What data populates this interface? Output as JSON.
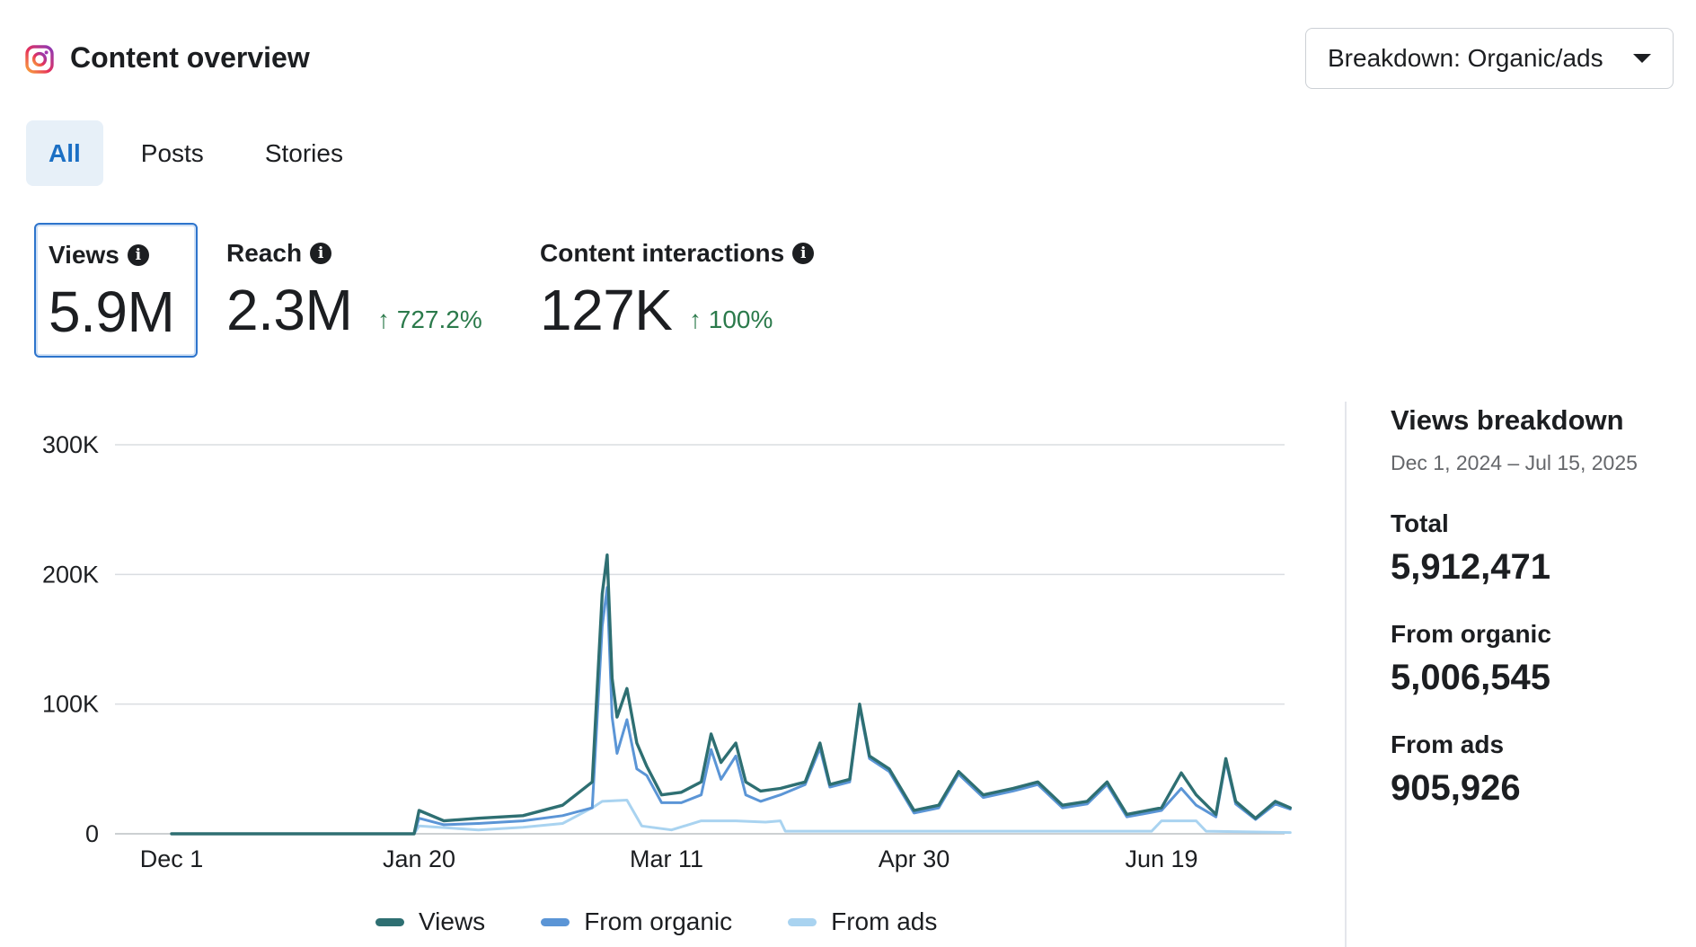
{
  "header": {
    "title": "Content overview",
    "breakdown_label": "Breakdown: Organic/ads"
  },
  "tabs": [
    {
      "label": "All",
      "active": true
    },
    {
      "label": "Posts",
      "active": false
    },
    {
      "label": "Stories",
      "active": false
    }
  ],
  "metrics": [
    {
      "label": "Views",
      "value": "5.9M",
      "change": "",
      "selected": true
    },
    {
      "label": "Reach",
      "value": "2.3M",
      "change": "↑ 727.2%",
      "selected": false
    },
    {
      "label": "Content interactions",
      "value": "127K",
      "change": "↑ 100%",
      "selected": false
    }
  ],
  "colors": {
    "views": "#2e6f72",
    "organic": "#5b95d6",
    "ads": "#a9d3f0",
    "accent": "#1b6fc4",
    "positive": "#2b7a4b"
  },
  "breakdown_panel": {
    "title": "Views breakdown",
    "date_range": "Dec 1, 2024 – Jul 15, 2025",
    "items": [
      {
        "label": "Total",
        "value": "5,912,471"
      },
      {
        "label": "From organic",
        "value": "5,006,545"
      },
      {
        "label": "From ads",
        "value": "905,926"
      }
    ]
  },
  "chart_data": {
    "type": "line",
    "x_ticks": [
      "Dec 1",
      "Jan 20",
      "Mar 11",
      "Apr 30",
      "Jun 19"
    ],
    "y_ticks": [
      "0",
      "100K",
      "200K",
      "300K"
    ],
    "ylim": [
      0,
      300000
    ],
    "xlim": [
      "Dec 1, 2024",
      "Jul 15, 2025"
    ],
    "grid": true,
    "legend_position": "bottom",
    "series": [
      {
        "name": "Views",
        "color": "#2e6f72",
        "points": [
          [
            "Dec 1",
            0
          ],
          [
            "Jan 19",
            0
          ],
          [
            "Jan 20",
            18000
          ],
          [
            "Jan 25",
            10000
          ],
          [
            "Feb 1",
            12000
          ],
          [
            "Feb 10",
            14000
          ],
          [
            "Feb 18",
            22000
          ],
          [
            "Feb 24",
            40000
          ],
          [
            "Feb 26",
            185000
          ],
          [
            "Feb 27",
            215000
          ],
          [
            "Feb 28",
            120000
          ],
          [
            "Mar 1",
            90000
          ],
          [
            "Mar 3",
            112000
          ],
          [
            "Mar 5",
            70000
          ],
          [
            "Mar 7",
            52000
          ],
          [
            "Mar 10",
            30000
          ],
          [
            "Mar 14",
            32000
          ],
          [
            "Mar 18",
            40000
          ],
          [
            "Mar 20",
            77000
          ],
          [
            "Mar 22",
            55000
          ],
          [
            "Mar 25",
            70000
          ],
          [
            "Mar 27",
            40000
          ],
          [
            "Mar 30",
            33000
          ],
          [
            "Apr 3",
            35000
          ],
          [
            "Apr 8",
            40000
          ],
          [
            "Apr 11",
            70000
          ],
          [
            "Apr 13",
            38000
          ],
          [
            "Apr 17",
            42000
          ],
          [
            "Apr 19",
            100000
          ],
          [
            "Apr 21",
            60000
          ],
          [
            "Apr 25",
            50000
          ],
          [
            "Apr 30",
            18000
          ],
          [
            "May 5",
            22000
          ],
          [
            "May 9",
            48000
          ],
          [
            "May 14",
            30000
          ],
          [
            "May 20",
            35000
          ],
          [
            "May 25",
            40000
          ],
          [
            "May 30",
            22000
          ],
          [
            "Jun 4",
            25000
          ],
          [
            "Jun 8",
            40000
          ],
          [
            "Jun 12",
            15000
          ],
          [
            "Jun 19",
            20000
          ],
          [
            "Jun 23",
            47000
          ],
          [
            "Jun 26",
            30000
          ],
          [
            "Jun 30",
            15000
          ],
          [
            "Jul 2",
            58000
          ],
          [
            "Jul 4",
            25000
          ],
          [
            "Jul 8",
            12000
          ],
          [
            "Jul 12",
            25000
          ],
          [
            "Jul 15",
            20000
          ]
        ]
      },
      {
        "name": "From organic",
        "color": "#5b95d6",
        "points": [
          [
            "Dec 1",
            0
          ],
          [
            "Jan 19",
            0
          ],
          [
            "Jan 20",
            12000
          ],
          [
            "Jan 25",
            7000
          ],
          [
            "Feb 1",
            8000
          ],
          [
            "Feb 10",
            10000
          ],
          [
            "Feb 18",
            14000
          ],
          [
            "Feb 24",
            20000
          ],
          [
            "Feb 26",
            160000
          ],
          [
            "Feb 27",
            190000
          ],
          [
            "Feb 28",
            90000
          ],
          [
            "Mar 1",
            62000
          ],
          [
            "Mar 3",
            88000
          ],
          [
            "Mar 5",
            50000
          ],
          [
            "Mar 7",
            45000
          ],
          [
            "Mar 10",
            24000
          ],
          [
            "Mar 14",
            24000
          ],
          [
            "Mar 18",
            30000
          ],
          [
            "Mar 20",
            65000
          ],
          [
            "Mar 22",
            42000
          ],
          [
            "Mar 25",
            60000
          ],
          [
            "Mar 27",
            30000
          ],
          [
            "Mar 30",
            25000
          ],
          [
            "Apr 3",
            30000
          ],
          [
            "Apr 8",
            38000
          ],
          [
            "Apr 11",
            66000
          ],
          [
            "Apr 13",
            36000
          ],
          [
            "Apr 17",
            40000
          ],
          [
            "Apr 19",
            98000
          ],
          [
            "Apr 21",
            58000
          ],
          [
            "Apr 25",
            48000
          ],
          [
            "Apr 30",
            16000
          ],
          [
            "May 5",
            20000
          ],
          [
            "May 9",
            46000
          ],
          [
            "May 14",
            28000
          ],
          [
            "May 20",
            33000
          ],
          [
            "May 25",
            38000
          ],
          [
            "May 30",
            20000
          ],
          [
            "Jun 4",
            23000
          ],
          [
            "Jun 8",
            38000
          ],
          [
            "Jun 12",
            13000
          ],
          [
            "Jun 19",
            18000
          ],
          [
            "Jun 23",
            35000
          ],
          [
            "Jun 26",
            22000
          ],
          [
            "Jun 30",
            13000
          ],
          [
            "Jul 2",
            56000
          ],
          [
            "Jul 4",
            23000
          ],
          [
            "Jul 8",
            11000
          ],
          [
            "Jul 12",
            23000
          ],
          [
            "Jul 15",
            19000
          ]
        ]
      },
      {
        "name": "From ads",
        "color": "#a9d3f0",
        "points": [
          [
            "Dec 1",
            0
          ],
          [
            "Jan 19",
            0
          ],
          [
            "Jan 20",
            6000
          ],
          [
            "Feb 1",
            3000
          ],
          [
            "Feb 10",
            5000
          ],
          [
            "Feb 18",
            8000
          ],
          [
            "Feb 24",
            20000
          ],
          [
            "Feb 26",
            25000
          ],
          [
            "Mar 3",
            26000
          ],
          [
            "Mar 6",
            6000
          ],
          [
            "Mar 12",
            3000
          ],
          [
            "Mar 18",
            10000
          ],
          [
            "Mar 25",
            10000
          ],
          [
            "Mar 31",
            9000
          ],
          [
            "Apr 3",
            10000
          ],
          [
            "Apr 4",
            2000
          ],
          [
            "Apr 30",
            2000
          ],
          [
            "Jun 17",
            2000
          ],
          [
            "Jun 19",
            10000
          ],
          [
            "Jun 26",
            10000
          ],
          [
            "Jun 28",
            2000
          ],
          [
            "Jul 15",
            1000
          ]
        ]
      }
    ]
  }
}
